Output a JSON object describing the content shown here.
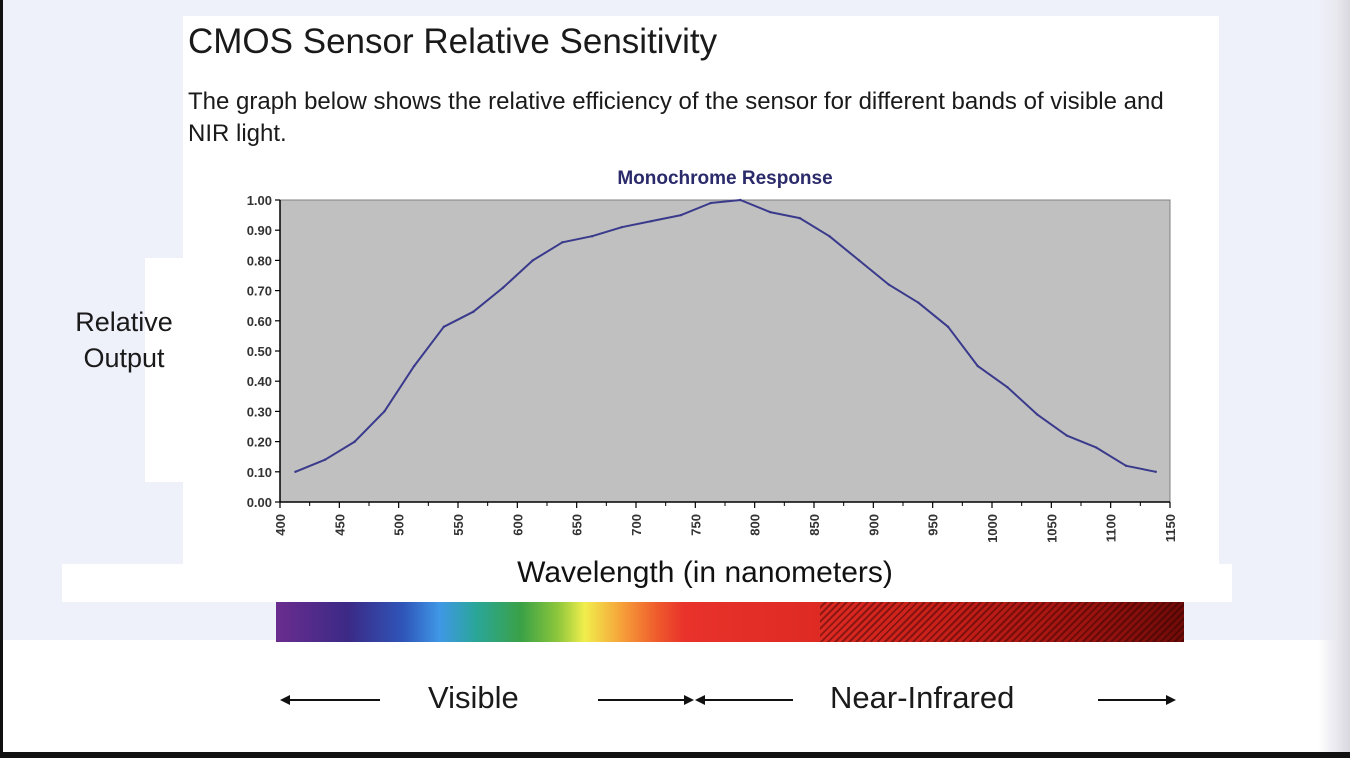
{
  "page": {
    "title": "CMOS Sensor Relative Sensitivity",
    "description": "The graph below shows the relative efficiency of the sensor for different bands of visible and NIR light."
  },
  "bands": {
    "visible": "Visible",
    "near_infrared": "Near-Infrared"
  },
  "colors": {
    "plot_background": "#c0c0c0",
    "line": "#3a3a8c",
    "title": "#2b2a6b"
  },
  "chart_data": {
    "type": "line",
    "title": "Monochrome Response",
    "xlabel": "Wavelength (in nanometers)",
    "ylabel": "Relative Output",
    "xlim": [
      400,
      1150
    ],
    "ylim": [
      0,
      1.0
    ],
    "grid": false,
    "x_ticks": [
      "400",
      "450",
      "500",
      "550",
      "600",
      "650",
      "700",
      "750",
      "800",
      "850",
      "900",
      "950",
      "1000",
      "1050",
      "1100",
      "1150"
    ],
    "y_ticks": [
      "0.00",
      "0.10",
      "0.20",
      "0.30",
      "0.40",
      "0.50",
      "0.60",
      "0.70",
      "0.80",
      "0.90",
      "1.00"
    ],
    "series": [
      {
        "x": [
          413,
          438,
          463,
          488,
          513,
          538,
          563,
          588,
          613,
          638,
          663,
          688,
          713,
          738,
          763,
          788,
          813,
          838,
          863,
          888,
          913,
          938,
          963,
          988,
          1013,
          1038,
          1063,
          1088,
          1113,
          1138
        ],
        "y": [
          0.1,
          0.14,
          0.2,
          0.3,
          0.45,
          0.58,
          0.63,
          0.71,
          0.8,
          0.86,
          0.88,
          0.91,
          0.93,
          0.95,
          0.99,
          1.0,
          0.96,
          0.94,
          0.88,
          0.8,
          0.72,
          0.66,
          0.58,
          0.45,
          0.38,
          0.29,
          0.22,
          0.18,
          0.12,
          0.1
        ]
      }
    ]
  }
}
